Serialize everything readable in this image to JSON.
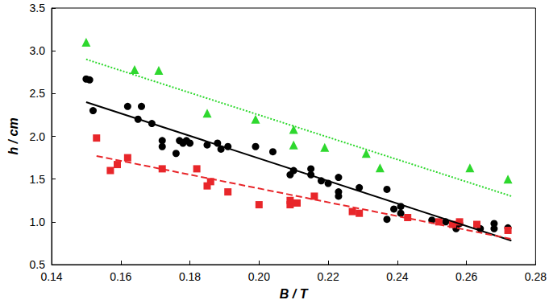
{
  "chart_data": {
    "type": "scatter",
    "x_label": "B / T",
    "y_label": "h / cm",
    "xlim": [
      0.14,
      0.28
    ],
    "ylim": [
      0.5,
      3.5
    ],
    "xticks": [
      0.14,
      0.16,
      0.18,
      {
        "value": 0.2,
        "label": "0.20"
      },
      0.22,
      0.24,
      0.26,
      0.28
    ],
    "yticks": [
      0.5,
      {
        "value": 1,
        "label": "1.0"
      },
      1.5,
      {
        "value": 2,
        "label": "2.0"
      },
      2.5,
      {
        "value": 3,
        "label": "3.0"
      },
      3.5
    ],
    "grid": false,
    "series": [
      {
        "type": "scatter",
        "marker": "triangle",
        "color": "#2ed82e",
        "x": [
          0.15,
          0.164,
          0.171,
          0.185,
          0.199,
          0.21,
          0.21,
          0.219,
          0.231,
          0.235,
          0.261,
          0.272
        ],
        "values": [
          3.1,
          2.78,
          2.77,
          2.27,
          2.2,
          2.08,
          1.9,
          1.87,
          1.8,
          1.63,
          1.63,
          1.5
        ]
      },
      {
        "type": "scatter",
        "marker": "circle",
        "color": "#000000",
        "x": [
          0.15,
          0.151,
          0.152,
          0.162,
          0.165,
          0.166,
          0.169,
          0.172,
          0.172,
          0.176,
          0.177,
          0.178,
          0.179,
          0.18,
          0.185,
          0.188,
          0.189,
          0.191,
          0.199,
          0.204,
          0.209,
          0.21,
          0.215,
          0.215,
          0.218,
          0.22,
          0.223,
          0.223,
          0.223,
          0.229,
          0.237,
          0.237,
          0.239,
          0.241,
          0.241,
          0.25,
          0.254,
          0.257,
          0.258,
          0.264,
          0.268,
          0.268,
          0.272
        ],
        "values": [
          2.67,
          2.66,
          2.3,
          2.35,
          2.2,
          2.35,
          2.15,
          1.95,
          1.88,
          1.8,
          1.95,
          1.92,
          1.95,
          1.92,
          1.9,
          1.92,
          1.85,
          1.88,
          1.88,
          1.82,
          1.55,
          1.6,
          1.62,
          1.55,
          1.48,
          1.45,
          1.52,
          1.35,
          1.3,
          1.4,
          1.38,
          1.03,
          1.15,
          1.18,
          1.1,
          1.02,
          1.0,
          0.92,
          0.98,
          0.92,
          0.98,
          0.92,
          0.93
        ]
      },
      {
        "type": "scatter",
        "marker": "square",
        "color": "#e8262a",
        "x": [
          0.153,
          0.157,
          0.159,
          0.162,
          0.172,
          0.182,
          0.185,
          0.186,
          0.191,
          0.2,
          0.209,
          0.209,
          0.211,
          0.216,
          0.227,
          0.229,
          0.243,
          0.252,
          0.256,
          0.258,
          0.263,
          0.272
        ],
        "values": [
          1.98,
          1.6,
          1.67,
          1.75,
          1.62,
          1.62,
          1.42,
          1.47,
          1.35,
          1.2,
          1.2,
          1.25,
          1.22,
          1.3,
          1.12,
          1.1,
          1.05,
          1.0,
          0.97,
          1.0,
          0.97,
          0.9
        ]
      },
      {
        "type": "line",
        "line_style": "dotted",
        "color": "#2ed82e",
        "x": [
          0.15,
          0.273
        ],
        "values": [
          2.9,
          1.3
        ]
      },
      {
        "type": "line",
        "line_style": "solid",
        "color": "#000000",
        "x": [
          0.15,
          0.273
        ],
        "values": [
          2.4,
          0.78
        ]
      },
      {
        "type": "line",
        "line_style": "dashed",
        "color": "#e8262a",
        "x": [
          0.153,
          0.273
        ],
        "values": [
          1.77,
          0.8
        ]
      }
    ]
  }
}
